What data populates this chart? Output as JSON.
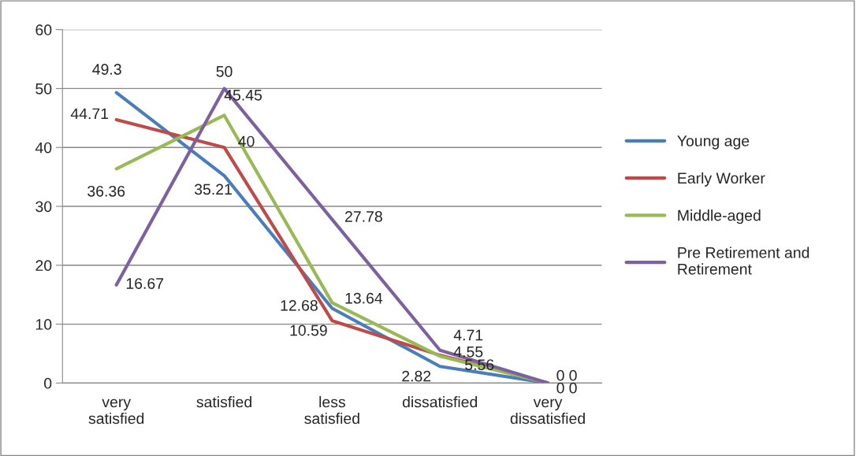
{
  "chart_data": {
    "type": "line",
    "categories": [
      "very\nsatisfied",
      "satisfied",
      "less\nsatisfied",
      "dissatisfied",
      "very\ndissatisfied"
    ],
    "series": [
      {
        "name": "Young age",
        "color": "#4a7ebb",
        "values": [
          49.3,
          35.21,
          12.68,
          2.82,
          0
        ]
      },
      {
        "name": "Early Worker",
        "color": "#be4b48",
        "values": [
          44.71,
          40,
          10.59,
          4.71,
          0
        ]
      },
      {
        "name": "Middle-aged",
        "color": "#98b954",
        "values": [
          36.36,
          45.45,
          13.64,
          4.55,
          0
        ]
      },
      {
        "name": "Pre Retirement and\nRetirement",
        "color": "#7d60a0",
        "values": [
          16.67,
          50,
          27.78,
          5.56,
          0
        ]
      }
    ],
    "ylim": [
      0,
      60
    ],
    "yticks": [
      0,
      10,
      20,
      30,
      40,
      50,
      60
    ],
    "grid": "y",
    "legend": "right",
    "data_labels": true,
    "marker": "none",
    "line_style": "solid"
  }
}
